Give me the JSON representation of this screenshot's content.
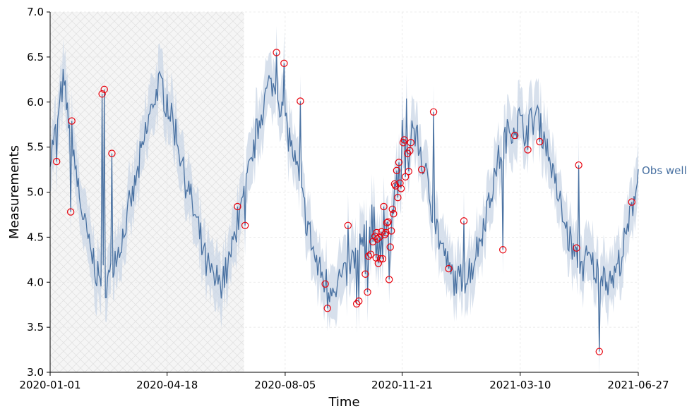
{
  "chart_data": {
    "type": "line",
    "title": "",
    "xlabel": "Time",
    "ylabel": "Measurements",
    "x_start": "2020-01-01",
    "x_end": "2021-06-27",
    "x_range_days": [
      0,
      543
    ],
    "x_ticks": [
      {
        "day": 0,
        "label": "2020-01-01"
      },
      {
        "day": 108,
        "label": "2020-04-18"
      },
      {
        "day": 217,
        "label": "2020-08-05"
      },
      {
        "day": 325,
        "label": "2020-11-21"
      },
      {
        "day": 434,
        "label": "2021-03-10"
      },
      {
        "day": 543,
        "label": "2021-06-27"
      }
    ],
    "ylim": [
      3.0,
      7.0
    ],
    "y_ticks": [
      "3.0",
      "3.5",
      "4.0",
      "4.5",
      "5.0",
      "5.5",
      "6.0",
      "6.5",
      "7.0"
    ],
    "grid": true,
    "shaded_region": {
      "start_day": 0,
      "end_day": 179,
      "pattern": "crosshatch"
    },
    "series": [
      {
        "name": "Obs well",
        "label": "Obs well",
        "color": "#4a72a2",
        "band_color": "#c9d6e6",
        "band_halfwidth": 0.3,
        "seasonal_model": {
          "mean": 5.0,
          "amplitude": 1.0,
          "period_days": 120,
          "peak_day": 7
        },
        "points": [
          [
            0,
            5.4
          ],
          [
            4,
            5.6
          ],
          [
            8,
            5.9
          ],
          [
            12,
            6.2
          ],
          [
            16,
            5.9
          ],
          [
            20,
            5.7
          ],
          [
            24,
            5.2
          ],
          [
            30,
            4.75
          ],
          [
            36,
            4.4
          ],
          [
            42,
            4.15
          ],
          [
            48,
            4.0
          ],
          [
            54,
            4.05
          ],
          [
            60,
            4.25
          ],
          [
            66,
            4.45
          ],
          [
            72,
            4.75
          ],
          [
            78,
            5.05
          ],
          [
            84,
            5.4
          ],
          [
            90,
            5.75
          ],
          [
            96,
            6.05
          ],
          [
            102,
            6.2
          ],
          [
            108,
            6.0
          ],
          [
            114,
            5.75
          ],
          [
            120,
            5.45
          ],
          [
            126,
            5.1
          ],
          [
            132,
            4.8
          ],
          [
            138,
            4.5
          ],
          [
            144,
            4.2
          ],
          [
            150,
            4.05
          ],
          [
            156,
            4.0
          ],
          [
            162,
            4.1
          ],
          [
            168,
            4.35
          ],
          [
            174,
            4.7
          ],
          [
            180,
            5.0
          ],
          [
            186,
            5.35
          ],
          [
            192,
            5.75
          ],
          [
            198,
            6.05
          ],
          [
            204,
            6.2
          ],
          [
            210,
            6.1
          ],
          [
            216,
            5.85
          ],
          [
            222,
            5.55
          ],
          [
            228,
            5.2
          ],
          [
            234,
            4.85
          ],
          [
            240,
            4.5
          ],
          [
            246,
            4.2
          ],
          [
            252,
            4.05
          ],
          [
            258,
            3.95
          ],
          [
            264,
            4.0
          ],
          [
            270,
            4.05
          ],
          [
            276,
            4.15
          ],
          [
            282,
            4.3
          ],
          [
            288,
            4.45
          ],
          [
            294,
            4.6
          ],
          [
            300,
            4.85
          ],
          [
            306,
            5.1
          ],
          [
            312,
            5.35
          ],
          [
            318,
            5.6
          ],
          [
            324,
            5.75
          ],
          [
            330,
            5.85
          ],
          [
            336,
            5.7
          ],
          [
            342,
            5.45
          ],
          [
            348,
            5.1
          ],
          [
            354,
            4.75
          ],
          [
            360,
            4.45
          ],
          [
            366,
            4.2
          ],
          [
            372,
            4.05
          ],
          [
            378,
            4.0
          ],
          [
            384,
            4.05
          ],
          [
            390,
            4.2
          ],
          [
            396,
            4.45
          ],
          [
            402,
            4.75
          ],
          [
            408,
            5.05
          ],
          [
            414,
            5.35
          ],
          [
            420,
            5.6
          ],
          [
            426,
            5.7
          ],
          [
            432,
            5.8
          ],
          [
            438,
            5.7
          ],
          [
            444,
            5.75
          ],
          [
            450,
            5.9
          ],
          [
            456,
            5.6
          ],
          [
            462,
            5.35
          ],
          [
            468,
            5.0
          ],
          [
            474,
            4.7
          ],
          [
            480,
            4.45
          ],
          [
            486,
            4.25
          ],
          [
            492,
            4.2
          ],
          [
            498,
            4.25
          ],
          [
            504,
            4.1
          ],
          [
            510,
            4.15
          ],
          [
            516,
            4.0
          ],
          [
            522,
            4.1
          ],
          [
            528,
            4.3
          ],
          [
            534,
            4.6
          ],
          [
            540,
            5.0
          ],
          [
            543,
            5.25
          ]
        ]
      }
    ],
    "anomalies": [
      [
        6,
        5.34
      ],
      [
        19,
        4.78
      ],
      [
        20,
        5.79
      ],
      [
        48,
        6.09
      ],
      [
        50,
        6.14
      ],
      [
        57,
        5.43
      ],
      [
        173,
        4.84
      ],
      [
        180,
        4.63
      ],
      [
        209,
        6.55
      ],
      [
        216,
        6.43
      ],
      [
        231,
        6.01
      ],
      [
        254,
        3.98
      ],
      [
        256,
        3.71
      ],
      [
        275,
        4.63
      ],
      [
        283,
        3.76
      ],
      [
        285,
        3.79
      ],
      [
        291,
        4.09
      ],
      [
        293,
        3.89
      ],
      [
        294,
        4.29
      ],
      [
        296,
        4.31
      ],
      [
        298,
        4.45
      ],
      [
        300,
        4.51
      ],
      [
        301,
        4.27
      ],
      [
        301.5,
        4.55
      ],
      [
        302,
        4.48
      ],
      [
        303,
        4.21
      ],
      [
        304,
        4.5
      ],
      [
        305,
        4.26
      ],
      [
        306,
        4.56
      ],
      [
        307,
        4.26
      ],
      [
        308,
        4.84
      ],
      [
        309,
        4.53
      ],
      [
        310,
        4.55
      ],
      [
        311,
        4.66
      ],
      [
        312,
        4.67
      ],
      [
        313,
        4.03
      ],
      [
        314,
        4.39
      ],
      [
        315,
        4.57
      ],
      [
        316,
        4.81
      ],
      [
        317,
        4.76
      ],
      [
        318,
        5.09
      ],
      [
        319,
        5.07
      ],
      [
        320,
        5.24
      ],
      [
        321,
        4.94
      ],
      [
        322,
        5.33
      ],
      [
        323,
        5.1
      ],
      [
        324,
        5.04
      ],
      [
        326,
        5.55
      ],
      [
        327,
        5.58
      ],
      [
        328,
        5.17
      ],
      [
        330,
        5.43
      ],
      [
        331,
        5.23
      ],
      [
        332,
        5.46
      ],
      [
        333,
        5.55
      ],
      [
        343,
        5.25
      ],
      [
        354,
        5.89
      ],
      [
        368,
        4.15
      ],
      [
        382,
        4.68
      ],
      [
        418,
        4.36
      ],
      [
        429,
        5.63
      ],
      [
        441,
        5.47
      ],
      [
        452,
        5.56
      ],
      [
        486,
        4.38
      ],
      [
        488,
        5.3
      ],
      [
        507,
        3.23
      ],
      [
        537,
        4.89
      ]
    ],
    "anomaly_color": "#e8000b"
  }
}
